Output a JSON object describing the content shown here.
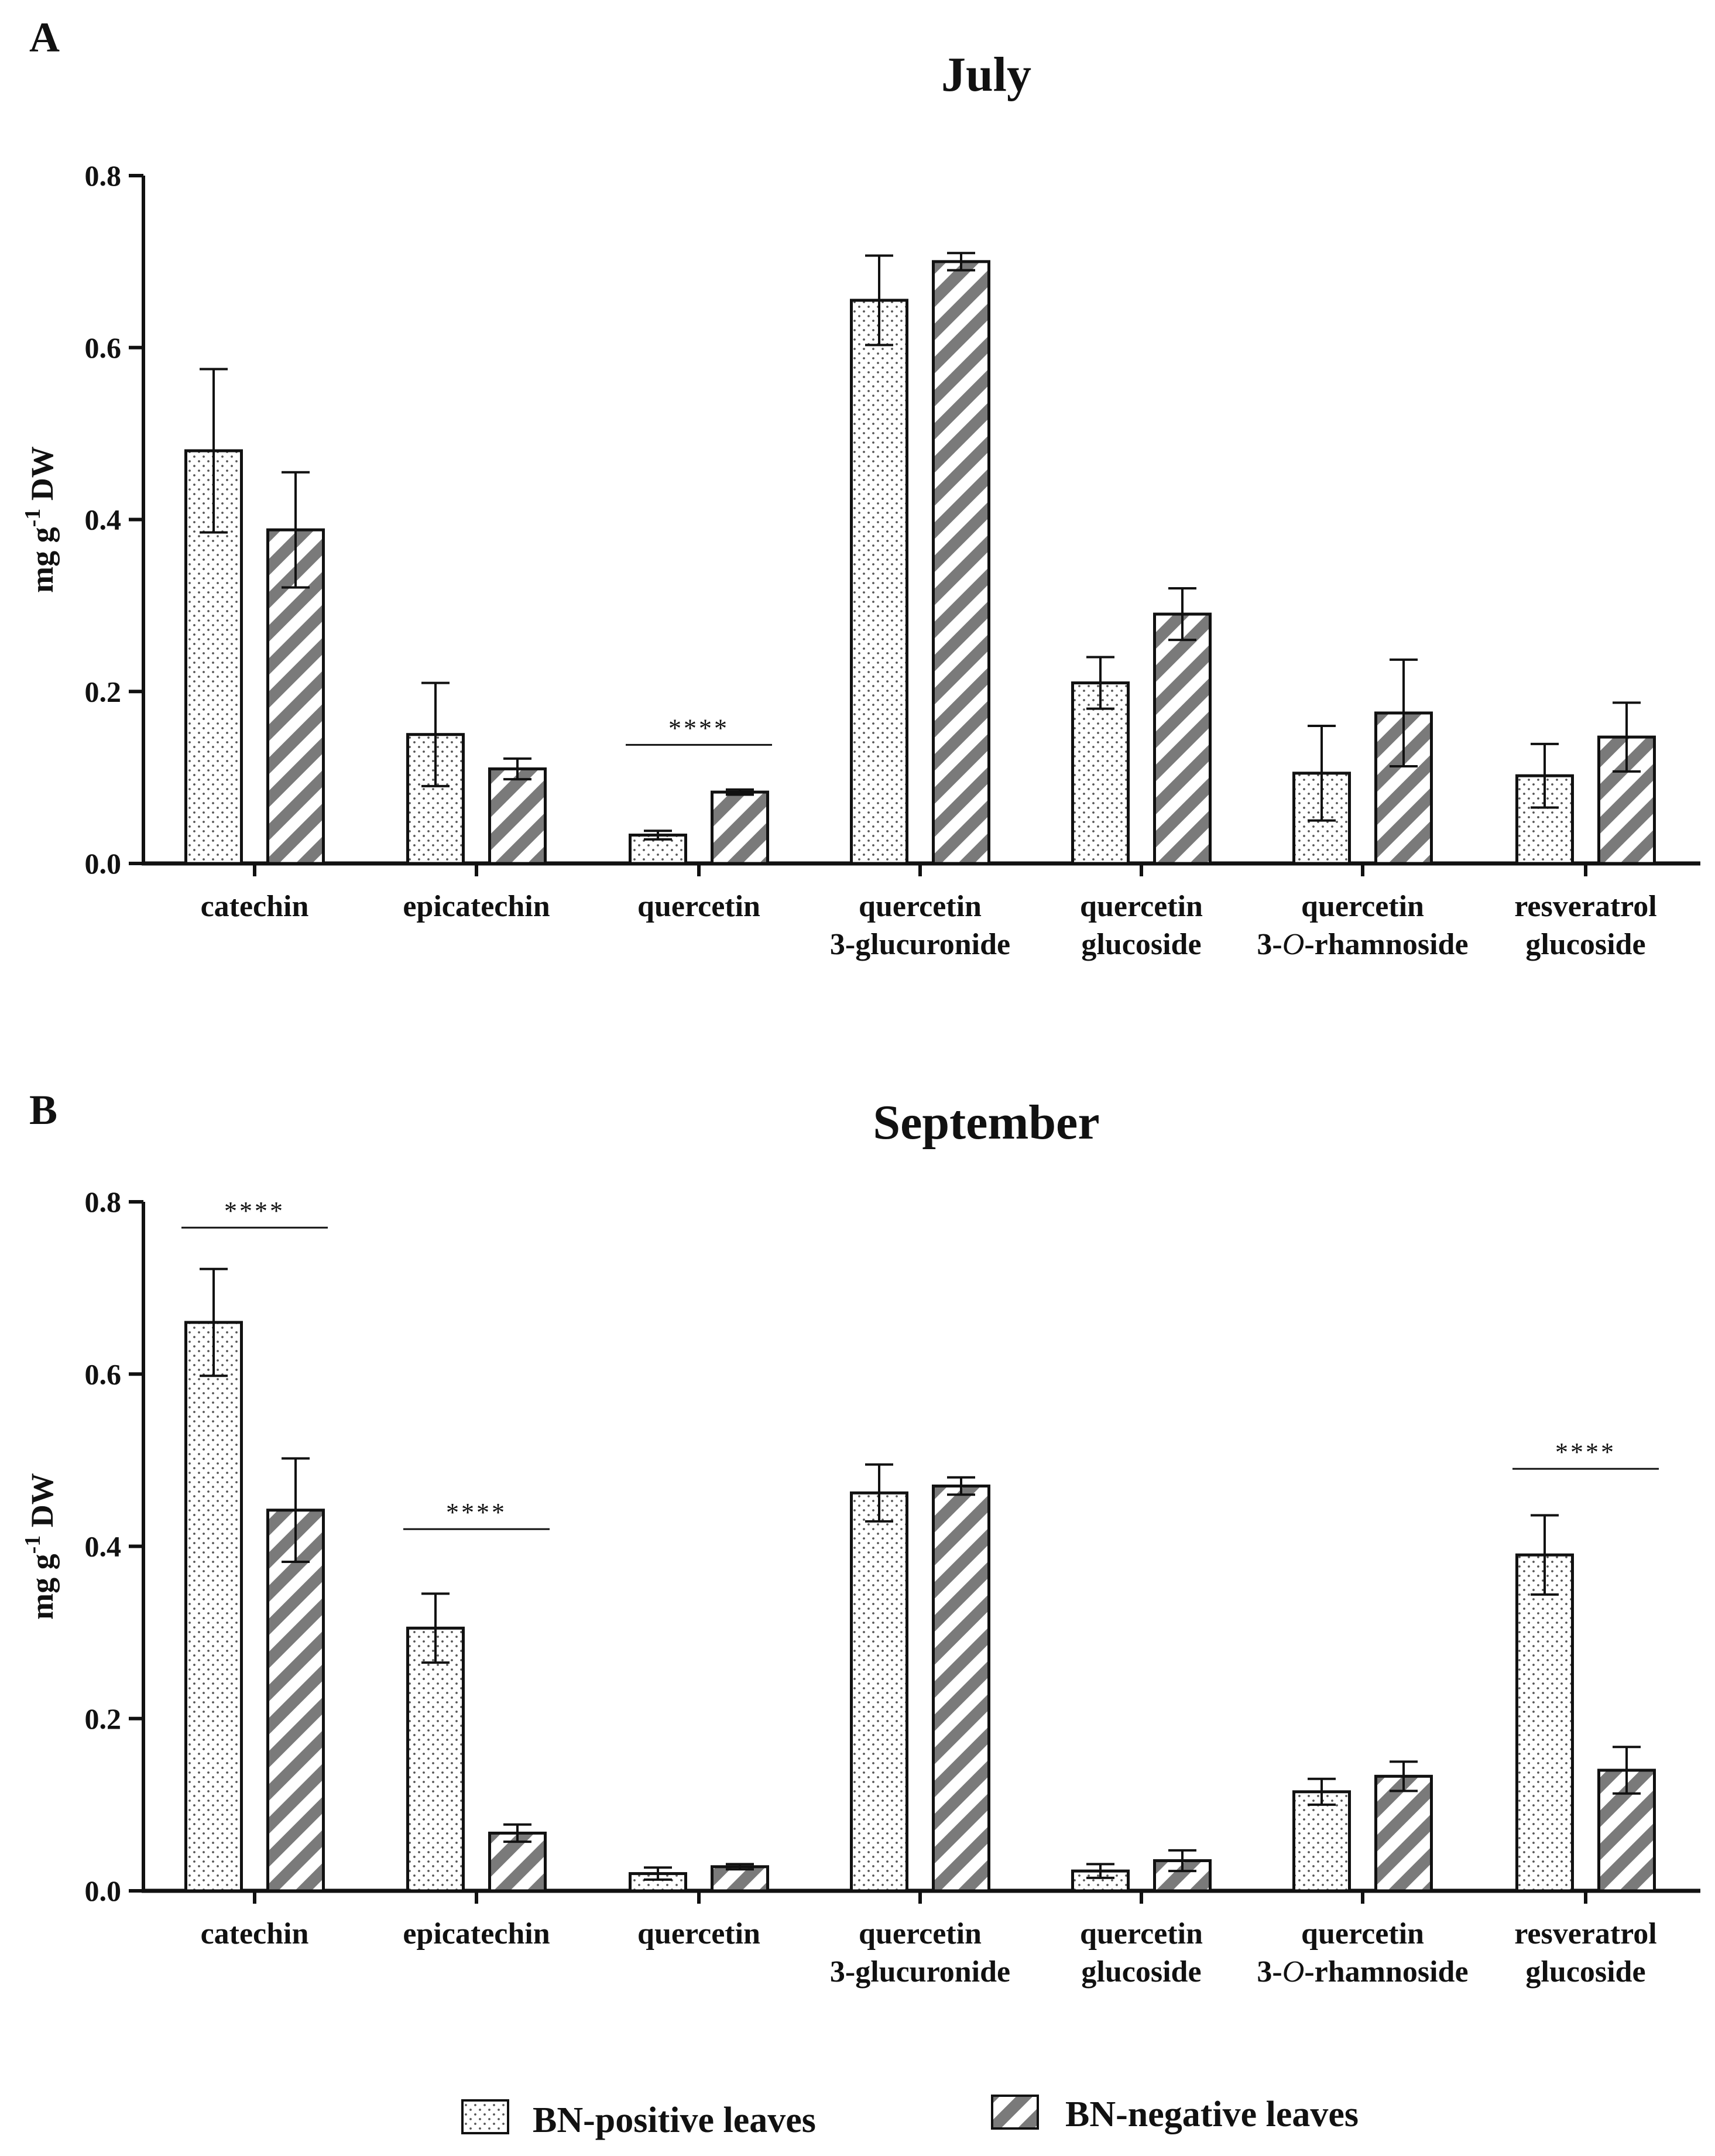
{
  "chart_data": [
    {
      "type": "bar",
      "panel": "A",
      "title": "July",
      "xlabel": "",
      "ylabel": "mg g-1 DW",
      "ylabel_parts": {
        "main": "mg g",
        "sup": "-1",
        "rest": " DW"
      },
      "ylim": [
        0,
        0.8
      ],
      "yticks": [
        "0.0",
        "0.2",
        "0.4",
        "0.6",
        "0.8"
      ],
      "categories": [
        [
          "catechin"
        ],
        [
          "epicatechin"
        ],
        [
          "quercetin"
        ],
        [
          "quercetin",
          "3-glucuronide"
        ],
        [
          "quercetin",
          "glucoside"
        ],
        [
          "quercetin",
          "3-O-rhamnoside"
        ],
        [
          "resveratrol",
          "glucoside"
        ]
      ],
      "series": [
        {
          "name": "BN-positive leaves",
          "pattern": "dots",
          "values": [
            0.48,
            0.15,
            0.033,
            0.655,
            0.21,
            0.105,
            0.102
          ],
          "errors": [
            0.095,
            0.06,
            0.005,
            0.052,
            0.03,
            0.055,
            0.037
          ]
        },
        {
          "name": "BN-negative leaves",
          "pattern": "stripes",
          "values": [
            0.388,
            0.11,
            0.083,
            0.7,
            0.29,
            0.175,
            0.147
          ],
          "errors": [
            0.067,
            0.012,
            0.003,
            0.01,
            0.03,
            0.062,
            0.04
          ]
        }
      ],
      "significance": [
        {
          "category_index": 2,
          "label": "****",
          "y": 0.138
        }
      ]
    },
    {
      "type": "bar",
      "panel": "B",
      "title": "September",
      "xlabel": "",
      "ylabel": "mg g-1 DW",
      "ylabel_parts": {
        "main": "mg g",
        "sup": "-1",
        "rest": " DW"
      },
      "ylim": [
        0,
        0.8
      ],
      "yticks": [
        "0.0",
        "0.2",
        "0.4",
        "0.6",
        "0.8"
      ],
      "categories": [
        [
          "catechin"
        ],
        [
          "epicatechin"
        ],
        [
          "quercetin"
        ],
        [
          "quercetin",
          "3-glucuronide"
        ],
        [
          "quercetin",
          "glucoside"
        ],
        [
          "quercetin",
          "3-O-rhamnoside"
        ],
        [
          "resveratrol",
          "glucoside"
        ]
      ],
      "series": [
        {
          "name": "BN-positive leaves",
          "pattern": "dots",
          "values": [
            0.66,
            0.305,
            0.02,
            0.462,
            0.023,
            0.115,
            0.39
          ],
          "errors": [
            0.062,
            0.04,
            0.007,
            0.033,
            0.008,
            0.015,
            0.046
          ]
        },
        {
          "name": "BN-negative leaves",
          "pattern": "stripes",
          "values": [
            0.442,
            0.067,
            0.028,
            0.47,
            0.035,
            0.133,
            0.14
          ],
          "errors": [
            0.06,
            0.01,
            0.003,
            0.01,
            0.012,
            0.017,
            0.027
          ]
        }
      ],
      "significance": [
        {
          "category_index": 0,
          "label": "****",
          "y": 0.77
        },
        {
          "category_index": 1,
          "label": "****",
          "y": 0.42
        },
        {
          "category_index": 6,
          "label": "****",
          "y": 0.49
        }
      ]
    }
  ],
  "legend": [
    {
      "label": "BN-positive leaves",
      "pattern": "dots"
    },
    {
      "label": "BN-negative leaves",
      "pattern": "stripes"
    }
  ],
  "colors": {
    "axis": "#111111",
    "dots": "#555555",
    "stripes": "#777777",
    "background": "#ffffff"
  }
}
